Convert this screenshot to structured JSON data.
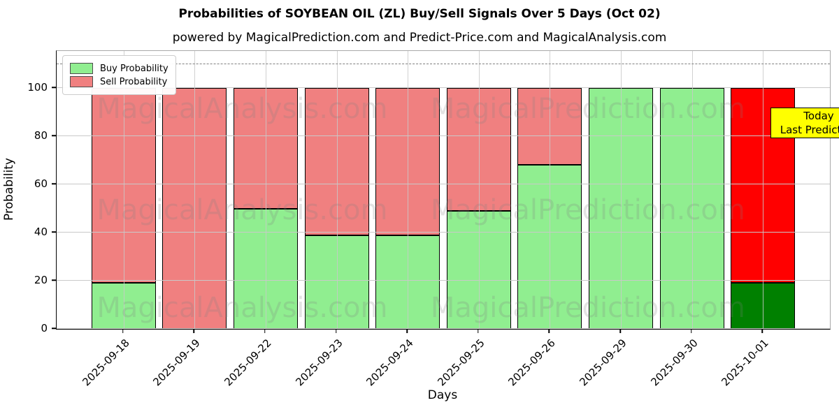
{
  "chart": {
    "title": "Probabilities of SOYBEAN OIL (ZL) Buy/Sell Signals Over 5 Days (Oct 02)",
    "subtitle": "powered by MagicalPrediction.com and Predict-Price.com and MagicalAnalysis.com",
    "xlabel": "Days",
    "ylabel": "Probability"
  },
  "legend": {
    "buy_label": "Buy Probability",
    "sell_label": "Sell Probability"
  },
  "annotation": {
    "line1": "Today",
    "line2": "Last Prediction",
    "bg_color": "#ffff00"
  },
  "watermarks": [
    "MagicalAnalysis.com",
    "MagicalPrediction.com"
  ],
  "colors": {
    "buy": "#90ee90",
    "sell": "#f08080",
    "today_buy": "#008000",
    "today_sell": "#ff0000",
    "grid": "#c9c9c9",
    "dashed_line": "#7f7f7f",
    "annotation_bg": "#ffff00"
  },
  "chart_data": {
    "type": "bar",
    "stacked": true,
    "title": "Probabilities of SOYBEAN OIL (ZL) Buy/Sell Signals Over 5 Days (Oct 02)",
    "subtitle": "powered by MagicalPrediction.com and Predict-Price.com and MagicalAnalysis.com",
    "xlabel": "Days",
    "ylabel": "Probability",
    "categories": [
      "2025-09-18",
      "2025-09-19",
      "2025-09-22",
      "2025-09-23",
      "2025-09-24",
      "2025-09-25",
      "2025-09-26",
      "2025-09-29",
      "2025-09-30",
      "2025-10-01"
    ],
    "series": [
      {
        "name": "Buy Probability",
        "color": "#90ee90",
        "values": [
          19,
          0,
          50,
          39,
          39,
          49,
          68,
          100,
          100,
          19
        ]
      },
      {
        "name": "Sell Probability",
        "color": "#f08080",
        "values": [
          81,
          100,
          50,
          61,
          61,
          51,
          32,
          0,
          0,
          81
        ]
      }
    ],
    "today_bar": {
      "index": 9,
      "buy_color": "#008000",
      "sell_color": "#ff0000",
      "label": "Today Last Prediction"
    },
    "yticks": [
      0,
      20,
      40,
      60,
      80,
      100
    ],
    "ylim": [
      0,
      115.4
    ],
    "threshold_line": {
      "y": 110,
      "style": "dashed",
      "color": "#7f7f7f"
    },
    "grid": true,
    "legend_position": "upper-left"
  }
}
